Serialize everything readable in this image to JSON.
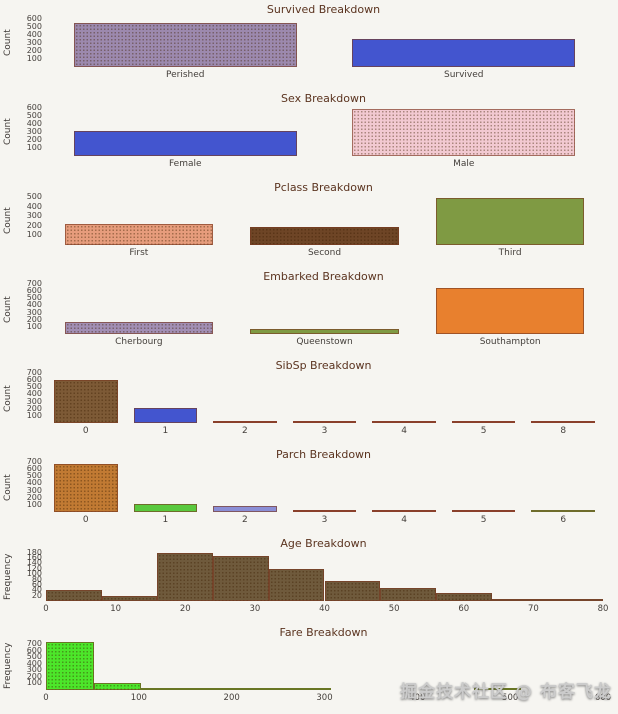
{
  "page": {
    "background": "#f6f5f1",
    "watermark": "掘金技术社区 @ 布客飞龙"
  },
  "chart_data": [
    {
      "type": "bar",
      "title": "Survived Breakdown",
      "ylabel": "Count",
      "categories": [
        "Perished",
        "Survived"
      ],
      "values": [
        549,
        342
      ],
      "colors": [
        "#9c89ae",
        "#4355cf"
      ],
      "hatched": [
        true,
        false
      ],
      "yticks": [
        100,
        200,
        300,
        400,
        500,
        600
      ],
      "ylim": [
        0,
        620
      ]
    },
    {
      "type": "bar",
      "title": "Sex Breakdown",
      "ylabel": "Count",
      "categories": [
        "Female",
        "Male"
      ],
      "values": [
        314,
        577
      ],
      "colors": [
        "#4355cf",
        "#f2c9d1"
      ],
      "hatched": [
        false,
        true
      ],
      "yticks": [
        100,
        200,
        300,
        400,
        500,
        600
      ],
      "ylim": [
        0,
        620
      ]
    },
    {
      "type": "bar",
      "title": "Pclass Breakdown",
      "ylabel": "Count",
      "categories": [
        "First",
        "Second",
        "Third"
      ],
      "values": [
        216,
        184,
        491
      ],
      "colors": [
        "#e69c7c",
        "#6e4526",
        "#7f9a43"
      ],
      "hatched": [
        true,
        true,
        false
      ],
      "yticks": [
        100,
        200,
        300,
        400,
        500
      ],
      "ylim": [
        0,
        520
      ]
    },
    {
      "type": "bar",
      "title": "Embarked Breakdown",
      "ylabel": "Count",
      "categories": [
        "Cherbourg",
        "Queenstown",
        "Southampton"
      ],
      "values": [
        168,
        77,
        644
      ],
      "colors": [
        "#a28eb4",
        "#7f9a43",
        "#e8802e"
      ],
      "hatched": [
        true,
        false,
        false
      ],
      "yticks": [
        100,
        200,
        300,
        400,
        500,
        600,
        700
      ],
      "ylim": [
        0,
        700
      ]
    },
    {
      "type": "bar",
      "title": "SibSp Breakdown",
      "ylabel": "Count",
      "categories": [
        "0",
        "1",
        "2",
        "3",
        "4",
        "5",
        "8"
      ],
      "values": [
        608,
        209,
        28,
        16,
        18,
        5,
        7
      ],
      "colors": [
        "#7d5a36",
        "#4355cf",
        "#a94a3c",
        "#a94a3c",
        "#a94a3c",
        "#a94a3c",
        "#a94a3c"
      ],
      "hatched": [
        true,
        false,
        false,
        false,
        false,
        false,
        false
      ],
      "yticks": [
        100,
        200,
        300,
        400,
        500,
        600,
        700
      ],
      "ylim": [
        0,
        700
      ]
    },
    {
      "type": "bar",
      "title": "Parch Breakdown",
      "ylabel": "Count",
      "categories": [
        "0",
        "1",
        "2",
        "3",
        "4",
        "5",
        "6"
      ],
      "values": [
        678,
        118,
        80,
        5,
        4,
        5,
        1
      ],
      "colors": [
        "#c17a33",
        "#59c93e",
        "#8b8ed6",
        "#a94a3c",
        "#a94a3c",
        "#a94a3c",
        "#59c93e"
      ],
      "hatched": [
        true,
        false,
        false,
        false,
        false,
        false,
        false
      ],
      "yticks": [
        100,
        200,
        300,
        400,
        500,
        600,
        700
      ],
      "ylim": [
        0,
        700
      ]
    },
    {
      "type": "hist",
      "title": "Age Breakdown",
      "ylabel": "Frequency",
      "bin_start": 0,
      "bin_width": 8,
      "counts": [
        42,
        20,
        178,
        168,
        120,
        76,
        48,
        28,
        9,
        3
      ],
      "color": "#6f5a3c",
      "hatched": true,
      "xlim": [
        0,
        80
      ],
      "xticks": [
        0,
        10,
        20,
        30,
        40,
        50,
        60,
        70,
        80
      ],
      "yticks": [
        20,
        40,
        60,
        80,
        100,
        120,
        140,
        160,
        180
      ],
      "ylim": [
        0,
        186
      ]
    },
    {
      "type": "hist",
      "title": "Fare Breakdown",
      "ylabel": "Frequency",
      "bin_start": 0,
      "bin_width": 51.2,
      "counts": [
        732,
        106,
        31,
        2,
        11,
        6,
        0,
        0,
        0,
        3
      ],
      "color": "#4ce62a",
      "hatched": true,
      "xlim": [
        0,
        600
      ],
      "xticks": [
        0,
        100,
        200,
        300,
        400,
        500,
        600
      ],
      "yticks": [
        100,
        200,
        300,
        400,
        500,
        600,
        700
      ],
      "ylim": [
        0,
        760
      ]
    }
  ]
}
